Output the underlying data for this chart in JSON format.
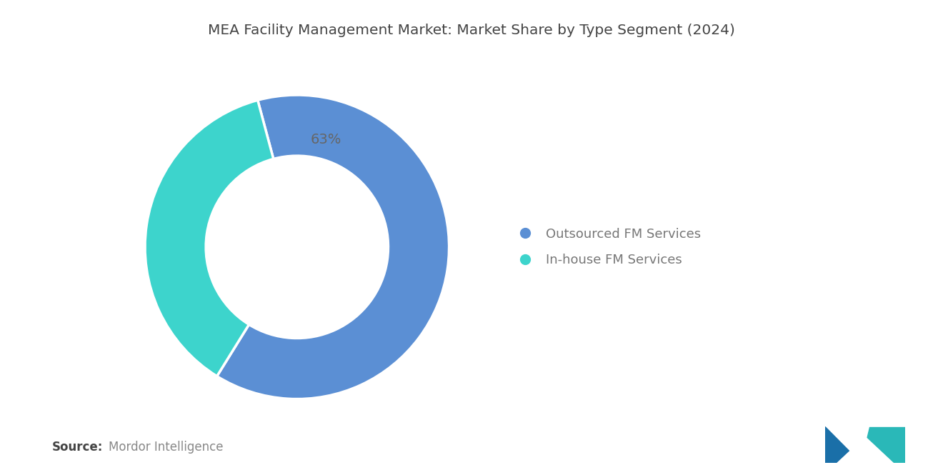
{
  "title": "MEA Facility Management Market: Market Share by Type Segment (2024)",
  "slices": [
    63,
    37
  ],
  "colors": [
    "#5b8fd4",
    "#3dd4cc"
  ],
  "pct_label": "63%",
  "pct_label_color": "#666666",
  "legend_labels": [
    "Outsourced FM Services",
    "In-house FM Services"
  ],
  "legend_colors": [
    "#5b8fd4",
    "#3dd4cc"
  ],
  "source_bold": "Source:",
  "source_text": "Mordor Intelligence",
  "background_color": "#ffffff",
  "title_color": "#444444",
  "title_fontsize": 14.5,
  "legend_fontsize": 13,
  "source_fontsize": 12,
  "startangle": 105,
  "donut_width": 0.4
}
